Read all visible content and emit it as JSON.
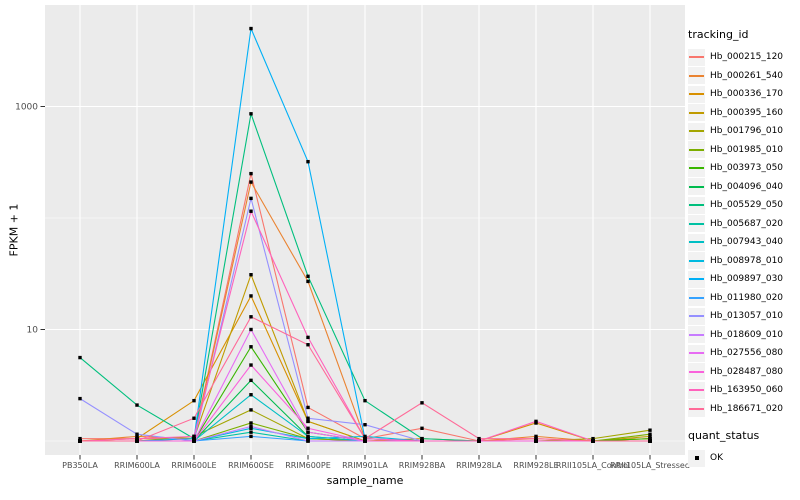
{
  "colors": {
    "panel_background": "#EBEBEB",
    "gridline": "#FFFFFF",
    "tick_mark": "#333333",
    "tick_text": "#4D4D4D",
    "point": "#000000",
    "legend_key_background": "#F2F2F2"
  },
  "legend": {
    "tracking_title": "tracking_id",
    "quant_title": "quant_status",
    "quant_label": "OK"
  },
  "chart_data": {
    "type": "line",
    "title": "",
    "xlabel": "sample_name",
    "ylabel": "FPKM + 1",
    "legend_position": "right",
    "y_scale": "log10",
    "ylim_approx": [
      0.7,
      8000
    ],
    "y_axis_ticks": [
      {
        "value": 10,
        "label": "10"
      },
      {
        "value": 1000,
        "label": "1000"
      }
    ],
    "y_minor_gridlines": [
      1,
      100
    ],
    "x_categories": [
      "PB350LA",
      "RRIM600LA",
      "RRIM600LE",
      "RRIM600SE",
      "RRIM600PE",
      "RRIM901LA",
      "RRIM928BA",
      "RRIM928LA",
      "RRIM928LE",
      "RRII105LA_Control",
      "RRII105LA_Stressed"
    ],
    "point_shape": "square",
    "point_status": "OK",
    "series": [
      {
        "name": "Hb_000215_120",
        "color": "#F8766D",
        "values": [
          1.05,
          1.05,
          1.05,
          250,
          2.0,
          1.05,
          1.3,
          1.0,
          1.05,
          1.0,
          1.05
        ]
      },
      {
        "name": "Hb_000261_540",
        "color": "#EA8331",
        "values": [
          1.0,
          1.1,
          1.05,
          210,
          27,
          1.05,
          1.0,
          1.0,
          1.1,
          1.0,
          1.0
        ]
      },
      {
        "name": "Hb_000336_170",
        "color": "#D89000",
        "values": [
          1.0,
          1.05,
          2.3,
          20,
          1.5,
          1.0,
          1.05,
          1.0,
          1.45,
          1.0,
          1.05
        ]
      },
      {
        "name": "Hb_000395_160",
        "color": "#C09B00",
        "values": [
          1.0,
          1.0,
          1.05,
          31,
          1.5,
          1.0,
          1.0,
          1.0,
          1.0,
          1.0,
          1.1
        ]
      },
      {
        "name": "Hb_001796_010",
        "color": "#A3A500",
        "values": [
          1.0,
          1.0,
          1.1,
          1.9,
          1.05,
          1.0,
          1.0,
          1.0,
          1.0,
          1.05,
          1.25
        ]
      },
      {
        "name": "Hb_001985_010",
        "color": "#7CAE00",
        "values": [
          1.0,
          1.0,
          1.0,
          1.45,
          1.05,
          1.0,
          1.0,
          1.0,
          1.0,
          1.0,
          1.15
        ]
      },
      {
        "name": "Hb_003973_050",
        "color": "#39B600",
        "values": [
          1.0,
          1.0,
          1.0,
          7.0,
          1.2,
          1.0,
          1.0,
          1.0,
          1.0,
          1.0,
          1.05
        ]
      },
      {
        "name": "Hb_004096_040",
        "color": "#00BB4E",
        "values": [
          1.0,
          1.0,
          1.0,
          3.5,
          1.1,
          1.0,
          1.0,
          1.0,
          1.0,
          1.0,
          1.0
        ]
      },
      {
        "name": "Hb_005529_050",
        "color": "#00BF7D",
        "values": [
          5.6,
          2.1,
          1.05,
          860,
          30,
          2.3,
          1.05,
          1.0,
          1.0,
          1.0,
          1.0
        ]
      },
      {
        "name": "Hb_005687_020",
        "color": "#00C1A3",
        "values": [
          1.0,
          1.0,
          1.0,
          1.2,
          1.0,
          1.0,
          1.0,
          1.0,
          1.0,
          1.0,
          1.0
        ]
      },
      {
        "name": "Hb_007943_040",
        "color": "#00BFC4",
        "values": [
          1.0,
          1.0,
          1.0,
          2.6,
          1.1,
          1.0,
          1.0,
          1.0,
          1.0,
          1.0,
          1.0
        ]
      },
      {
        "name": "Hb_008978_010",
        "color": "#00BAE0",
        "values": [
          1.0,
          1.0,
          1.0,
          1.3,
          1.05,
          1.1,
          1.0,
          1.0,
          1.0,
          1.0,
          1.0
        ]
      },
      {
        "name": "Hb_009897_030",
        "color": "#00B0F6",
        "values": [
          1.0,
          1.0,
          1.05,
          5000,
          320,
          1.05,
          1.0,
          1.0,
          1.0,
          1.0,
          1.0
        ]
      },
      {
        "name": "Hb_011980_020",
        "color": "#35A2FF",
        "values": [
          1.0,
          1.0,
          1.0,
          1.1,
          1.0,
          1.0,
          1.0,
          1.0,
          1.0,
          1.0,
          1.0
        ]
      },
      {
        "name": "Hb_013057_010",
        "color": "#9590FF",
        "values": [
          2.4,
          1.15,
          1.0,
          150,
          1.6,
          1.4,
          1.0,
          1.0,
          1.0,
          1.0,
          1.0
        ]
      },
      {
        "name": "Hb_018609_010",
        "color": "#C77CFF",
        "values": [
          1.0,
          1.0,
          1.0,
          1.35,
          1.0,
          1.0,
          1.0,
          1.0,
          1.0,
          1.0,
          1.0
        ]
      },
      {
        "name": "Hb_027556_080",
        "color": "#E76BF3",
        "values": [
          1.0,
          1.0,
          1.0,
          10,
          1.2,
          1.0,
          1.0,
          1.0,
          1.0,
          1.0,
          1.0
        ]
      },
      {
        "name": "Hb_028487_080",
        "color": "#FA62DB",
        "values": [
          1.0,
          1.0,
          1.0,
          4.8,
          1.3,
          1.0,
          1.0,
          1.0,
          1.0,
          1.0,
          1.0
        ]
      },
      {
        "name": "Hb_163950_060",
        "color": "#FF62BC",
        "values": [
          1.0,
          1.05,
          1.1,
          115,
          8.5,
          1.05,
          1.0,
          1.0,
          1.5,
          1.0,
          1.0
        ]
      },
      {
        "name": "Hb_186671_020",
        "color": "#FF6A98",
        "values": [
          1.0,
          1.0,
          1.6,
          13,
          7.3,
          1.05,
          2.2,
          1.05,
          1.05,
          1.0,
          1.0
        ]
      }
    ]
  }
}
